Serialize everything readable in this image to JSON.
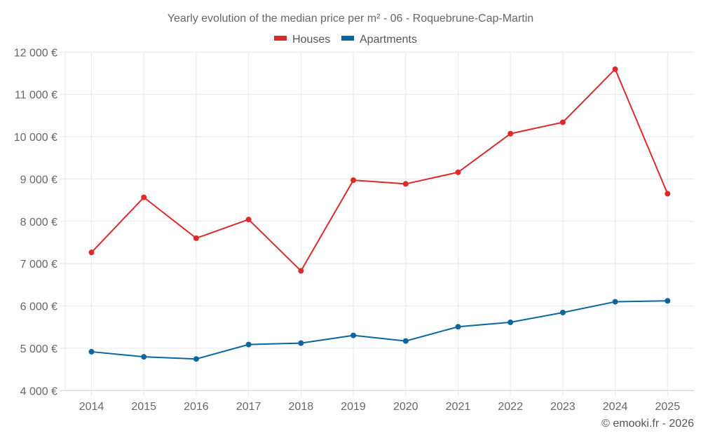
{
  "chart_data": {
    "type": "line",
    "title": "Yearly evolution of the median price per m² - 06 - Roquebrune-Cap-Martin",
    "xlabel": "",
    "ylabel": "",
    "categories": [
      "2014",
      "2015",
      "2016",
      "2017",
      "2018",
      "2019",
      "2020",
      "2021",
      "2022",
      "2023",
      "2024",
      "2025"
    ],
    "series": [
      {
        "name": "Houses",
        "color": "#dc2a2a",
        "values": [
          7265,
          8566,
          7601,
          8043,
          6828,
          8972,
          8884,
          9159,
          10071,
          10341,
          11596,
          8652
        ]
      },
      {
        "name": "Apartments",
        "color": "#0a66a0",
        "values": [
          4917,
          4797,
          4747,
          5088,
          5121,
          5303,
          5171,
          5508,
          5613,
          5844,
          6099,
          6121
        ]
      }
    ],
    "ylim": [
      4000,
      12000
    ],
    "yticks": [
      4000,
      5000,
      6000,
      7000,
      8000,
      9000,
      10000,
      11000,
      12000
    ],
    "ytick_labels": [
      "4 000 €",
      "5 000 €",
      "6 000 €",
      "7 000 €",
      "8 000 €",
      "9 000 €",
      "10 000 €",
      "11 000 €",
      "12 000 €"
    ],
    "grid": true,
    "legend_position": "top-center"
  },
  "credit": "© emooki.fr - 2026"
}
